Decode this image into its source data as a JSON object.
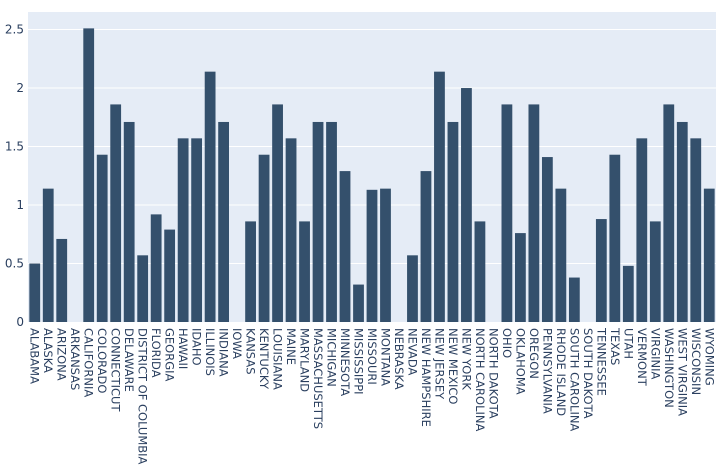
{
  "chart_data": {
    "type": "bar",
    "title": "",
    "xlabel": "",
    "ylabel": "",
    "ylim": [
      0,
      2.65
    ],
    "yticks": [
      0,
      0.5,
      1,
      1.5,
      2,
      2.5
    ],
    "ytick_labels": [
      "0",
      "0.5",
      "1",
      "1.5",
      "2",
      "2.5"
    ],
    "grid": true,
    "colors": {
      "bar": "#34506c",
      "plot_background": "#e5ecf6",
      "grid": "#ffffff",
      "text": "#2a3f5f"
    },
    "categories": [
      "ALABAMA",
      "ALASKA",
      "ARIZONA",
      "ARKANSAS",
      "CALIFORNIA",
      "COLORADO",
      "CONNECTICUT",
      "DELAWARE",
      "DISTRICT OF COLUMBIA",
      "FLORIDA",
      "GEORGIA",
      "HAWAII",
      "IDAHO",
      "ILLINOIS",
      "INDIANA",
      "IOWA",
      "KANSAS",
      "KENTUCKY",
      "LOUISIANA",
      "MAINE",
      "MARYLAND",
      "MASSACHUSETTS",
      "MICHIGAN",
      "MINNESOTA",
      "MISSISSIPPI",
      "MISSOURI",
      "MONTANA",
      "NEBRASKA",
      "NEVADA",
      "NEW HAMPSHIRE",
      "NEW JERSEY",
      "NEW MEXICO",
      "NEW YORK",
      "NORTH CAROLINA",
      "NORTH DAKOTA",
      "OHIO",
      "OKLAHOMA",
      "OREGON",
      "PENNSYLVANIA",
      "RHODE ISLAND",
      "SOUTH CAROLINA",
      "SOUTH DAKOTA",
      "TENNESSEE",
      "TEXAS",
      "UTAH",
      "VERMONT",
      "VIRGINIA",
      "WASHINGTON",
      "WEST VIRGINIA",
      "WISCONSIN",
      "WYOMING"
    ],
    "values": [
      0.5,
      1.14,
      0.71,
      0,
      2.51,
      1.43,
      1.86,
      1.71,
      0.57,
      0.92,
      0.79,
      1.57,
      1.57,
      2.14,
      1.71,
      0,
      0.86,
      1.43,
      1.86,
      1.57,
      0.86,
      1.71,
      1.71,
      1.29,
      0.32,
      1.13,
      1.14,
      0,
      0.57,
      1.29,
      2.14,
      1.71,
      2.0,
      0.86,
      0,
      1.86,
      0.76,
      1.86,
      1.41,
      1.14,
      0.38,
      0,
      0.88,
      1.43,
      0.48,
      1.57,
      0.86,
      1.86,
      1.71,
      1.57,
      1.14
    ]
  }
}
